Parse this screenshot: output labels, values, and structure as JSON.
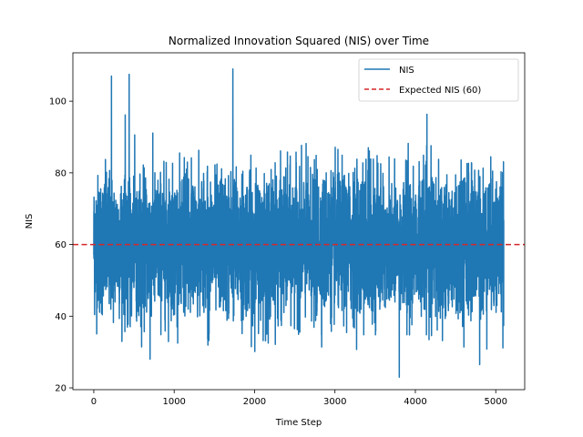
{
  "chart_data": {
    "type": "line",
    "title": "Normalized Innovation Squared (NIS) over Time",
    "xlabel": "Time Step",
    "ylabel": "NIS",
    "xlim": [
      -260,
      5360
    ],
    "ylim": [
      19.5,
      113.5
    ],
    "xticks": [
      0,
      1000,
      2000,
      3000,
      4000,
      5000
    ],
    "yticks": [
      20,
      40,
      60,
      80,
      100
    ],
    "grid": false,
    "legend_position": "top-right",
    "series": [
      {
        "name": "NIS",
        "color": "#1f77b4",
        "n_points": 5100,
        "mean": 60,
        "spikes": [
          {
            "x": 220,
            "y": 107
          },
          {
            "x": 440,
            "y": 107.5
          },
          {
            "x": 1730,
            "y": 109
          },
          {
            "x": 700,
            "y": 28
          },
          {
            "x": 3800,
            "y": 23
          },
          {
            "x": 4800,
            "y": 26.5
          }
        ]
      },
      {
        "name": "Expected NIS (60)",
        "color": "#d62728",
        "style": "dashed",
        "y": 60
      }
    ]
  }
}
